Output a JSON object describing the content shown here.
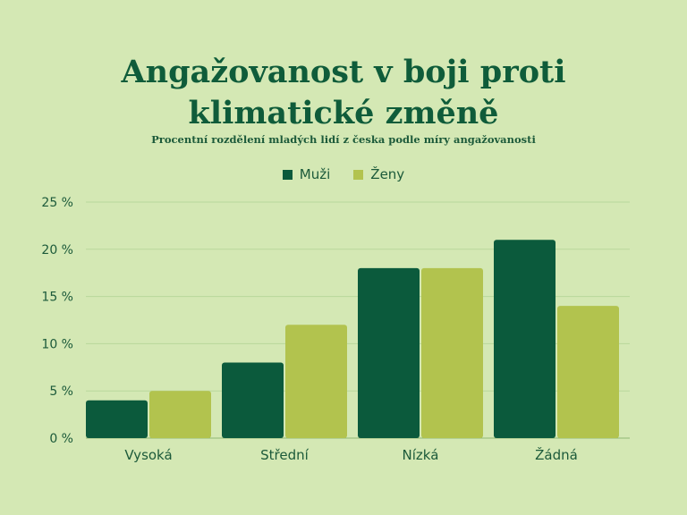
{
  "title_line1": "Angažovanost v boji proti",
  "title_line2": "klimatické změně",
  "subtitle": "Procentní rozdělení mladých lidí z česka podle míry angažovanosti",
  "colors": {
    "background": "#d4e8b4",
    "muzi": "#0b5a3c",
    "zeny": "#b2c34e",
    "grid": "#b9d79b",
    "text": "#1c5a3a"
  },
  "chart_data": {
    "type": "bar",
    "title": "Angažovanost v boji proti klimatické změně",
    "subtitle": "Procentní rozdělení mladých lidí z česka podle míry angažovanosti",
    "categories": [
      "Vysoká",
      "Střední",
      "Nízká",
      "Žádná"
    ],
    "series": [
      {
        "name": "Muži",
        "values": [
          4,
          8,
          18,
          21
        ]
      },
      {
        "name": "Ženy",
        "values": [
          5,
          12,
          18,
          14
        ]
      }
    ],
    "ylim": [
      0,
      25
    ],
    "yticks": [
      0,
      5,
      10,
      15,
      20,
      25
    ],
    "ytick_labels": [
      "0 %",
      "5 %",
      "10 %",
      "15 %",
      "20 %",
      "25 %"
    ],
    "xlabel": "",
    "ylabel": "",
    "grid": true,
    "legend_position": "top-center"
  }
}
